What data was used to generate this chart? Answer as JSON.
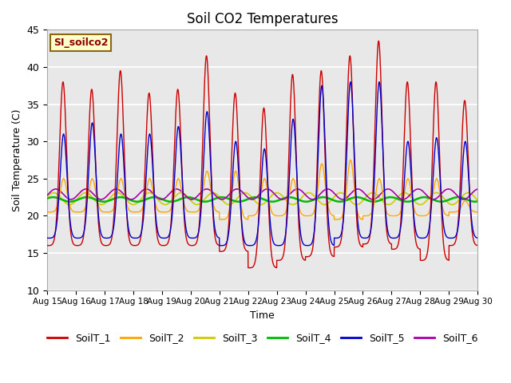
{
  "title": "Soil CO2 Temperatures",
  "xlabel": "Time",
  "ylabel": "Soil Temperature (C)",
  "ylim": [
    10,
    45
  ],
  "annotation": "SI_soilco2",
  "series_colors": {
    "SoilT_1": "#cc0000",
    "SoilT_2": "#ffa500",
    "SoilT_3": "#cccc00",
    "SoilT_4": "#00bb00",
    "SoilT_5": "#0000cc",
    "SoilT_6": "#aa00aa"
  },
  "xtick_labels": [
    "Aug 15",
    "Aug 16",
    "Aug 17",
    "Aug 18",
    "Aug 19",
    "Aug 20",
    "Aug 21",
    "Aug 22",
    "Aug 23",
    "Aug 24",
    "Aug 25",
    "Aug 26",
    "Aug 27",
    "Aug 28",
    "Aug 29",
    "Aug 30"
  ],
  "ytick_values": [
    10,
    15,
    20,
    25,
    30,
    35,
    40,
    45
  ],
  "n_days": 15,
  "points_per_day": 240,
  "T1_peaks": [
    38,
    37,
    39.5,
    36.5,
    37,
    41.5,
    36.5,
    34.5,
    39,
    39.5,
    41.5,
    43.5,
    38,
    38,
    35.5
  ],
  "T1_mins": [
    16,
    16,
    16,
    16,
    16,
    16,
    15.2,
    13,
    14,
    14.5,
    15.8,
    16.2,
    15.5,
    14,
    16
  ],
  "T5_peaks": [
    31,
    32.5,
    31,
    31,
    32,
    34,
    30,
    29,
    33,
    37.5,
    38,
    38,
    30,
    30.5,
    30
  ],
  "T5_mins": [
    17,
    17,
    17,
    17,
    17,
    17,
    16,
    16,
    16,
    16,
    17,
    17,
    17,
    17,
    17
  ],
  "T2_peaks": [
    25,
    25,
    25,
    25,
    25,
    26,
    26,
    25,
    25,
    27,
    27.5,
    25,
    25,
    25,
    22
  ],
  "T2_mins": [
    20.5,
    20.5,
    20.5,
    20.5,
    20.5,
    20.5,
    19.5,
    20,
    20,
    20,
    19.5,
    20,
    20,
    20,
    20.5
  ],
  "T3_mean": 22.3,
  "T3_amp": 0.8,
  "T4_mean": 22.2,
  "T4_amp": 0.3,
  "T6_mean": 22.9,
  "T6_amp": 0.7,
  "figsize": [
    6.4,
    4.8
  ],
  "dpi": 100
}
